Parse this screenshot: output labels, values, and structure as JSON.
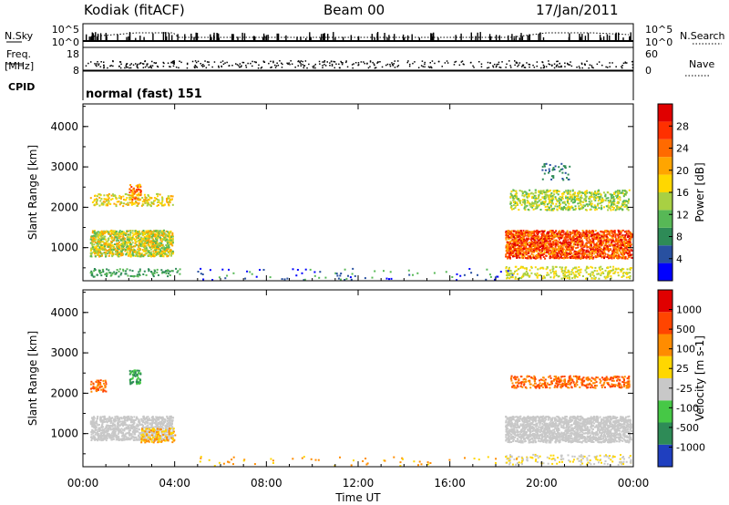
{
  "header": {
    "station": "Kodiak (fitACF)",
    "beam": "Beam 00",
    "date": "17/Jan/2011"
  },
  "strip_panels": {
    "nsky_label": "N.Sky",
    "nsky_ticks": [
      "10^5",
      "10^0"
    ],
    "nsearch_label": "N.Search",
    "nsearch_ticks": [
      "10^5",
      "10^0"
    ],
    "freq_label": "Freq.",
    "freq_unit": "[MHz]",
    "freq_ticks": [
      "18",
      "8"
    ],
    "nave_label": "Nave",
    "nave_ticks": [
      "60",
      "0"
    ],
    "cpid_label": "CPID",
    "cpid_value": "normal (fast) 151"
  },
  "chart_data": [
    {
      "type": "heatmap",
      "name": "power",
      "ylabel": "Slant Range [km]",
      "ylim": [
        180,
        4560
      ],
      "yticks": [
        "4000",
        "3000",
        "2000",
        "1000"
      ],
      "ytick_values": [
        4000,
        3000,
        2000,
        1000
      ],
      "colorbar_label": "Power [dB]",
      "colorbar_ticks": [
        "28",
        "24",
        "20",
        "16",
        "12",
        "8",
        "4"
      ],
      "colorbar_tick_values": [
        28,
        24,
        20,
        16,
        12,
        8,
        4
      ],
      "colorbar_range": [
        0,
        32
      ],
      "colors": [
        "#0000ff",
        "#2850a0",
        "#2e8b57",
        "#57b856",
        "#a8d043",
        "#ffd700",
        "#ffa500",
        "#ff6a00",
        "#ff3000",
        "#e00000"
      ]
    },
    {
      "type": "heatmap",
      "name": "velocity",
      "ylabel": "Slant Range [km]",
      "ylim": [
        180,
        4560
      ],
      "yticks": [
        "4000",
        "3000",
        "2000",
        "1000"
      ],
      "ytick_values": [
        4000,
        3000,
        2000,
        1000
      ],
      "colorbar_label": "Velocity [m s-1]",
      "colorbar_ticks": [
        "1000",
        "500",
        "100",
        "25",
        "-25",
        "-100",
        "-500",
        "-1000"
      ],
      "colors": [
        "#1f3fbf",
        "#2e8b57",
        "#46c846",
        "#c8c8c8",
        "#ffd700",
        "#ff8c00",
        "#ff4500",
        "#e00000"
      ]
    }
  ],
  "xaxis": {
    "label": "Time UT",
    "ticks": [
      "00:00",
      "04:00",
      "08:00",
      "12:00",
      "16:00",
      "20:00",
      "00:00"
    ],
    "tick_hours": [
      0,
      4,
      8,
      12,
      16,
      20,
      24
    ]
  },
  "scatter_regions": {
    "power": [
      {
        "t0": 0.3,
        "t1": 3.9,
        "r0": 800,
        "r1": 1450,
        "density": 0.85,
        "levels": [
          3,
          4,
          5,
          6
        ]
      },
      {
        "t0": 0.3,
        "t1": 3.9,
        "r0": 2050,
        "r1": 2350,
        "density": 0.35,
        "levels": [
          4,
          5,
          6
        ]
      },
      {
        "t0": 2.0,
        "t1": 2.5,
        "r0": 2200,
        "r1": 2600,
        "density": 0.6,
        "levels": [
          5,
          6,
          7,
          8
        ]
      },
      {
        "t0": 0.3,
        "t1": 4.2,
        "r0": 300,
        "r1": 500,
        "density": 0.25,
        "levels": [
          2,
          3
        ]
      },
      {
        "t0": 18.4,
        "t1": 23.9,
        "r0": 750,
        "r1": 1450,
        "density": 0.9,
        "levels": [
          6,
          7,
          8,
          9
        ]
      },
      {
        "t0": 18.6,
        "t1": 23.8,
        "r0": 1950,
        "r1": 2450,
        "density": 0.45,
        "levels": [
          3,
          4,
          5
        ]
      },
      {
        "t0": 18.4,
        "t1": 23.9,
        "r0": 250,
        "r1": 550,
        "density": 0.3,
        "levels": [
          4,
          5
        ]
      },
      {
        "t0": 20.0,
        "t1": 21.2,
        "r0": 2700,
        "r1": 3100,
        "density": 0.15,
        "levels": [
          1,
          2
        ]
      },
      {
        "t0": 4.8,
        "t1": 19.0,
        "r0": 220,
        "r1": 500,
        "density": 0.04,
        "levels": [
          0,
          1,
          3
        ]
      }
    ],
    "velocity": [
      {
        "t0": 0.3,
        "t1": 3.9,
        "r0": 850,
        "r1": 1450,
        "density": 0.8,
        "levels": [
          3
        ]
      },
      {
        "t0": 0.3,
        "t1": 1.0,
        "r0": 2050,
        "r1": 2350,
        "density": 0.5,
        "levels": [
          5,
          6
        ]
      },
      {
        "t0": 2.0,
        "t1": 2.5,
        "r0": 2250,
        "r1": 2600,
        "density": 0.6,
        "levels": [
          1,
          2
        ]
      },
      {
        "t0": 2.5,
        "t1": 4.0,
        "r0": 800,
        "r1": 1150,
        "density": 0.4,
        "levels": [
          4,
          5
        ]
      },
      {
        "t0": 18.4,
        "t1": 23.9,
        "r0": 800,
        "r1": 1450,
        "density": 0.9,
        "levels": [
          3
        ]
      },
      {
        "t0": 18.6,
        "t1": 23.8,
        "r0": 2150,
        "r1": 2450,
        "density": 0.45,
        "levels": [
          5,
          6
        ]
      },
      {
        "t0": 18.4,
        "t1": 23.9,
        "r0": 250,
        "r1": 500,
        "density": 0.2,
        "levels": [
          3,
          4
        ]
      },
      {
        "t0": 4.8,
        "t1": 19.0,
        "r0": 220,
        "r1": 450,
        "density": 0.03,
        "levels": [
          4,
          5
        ]
      }
    ]
  }
}
